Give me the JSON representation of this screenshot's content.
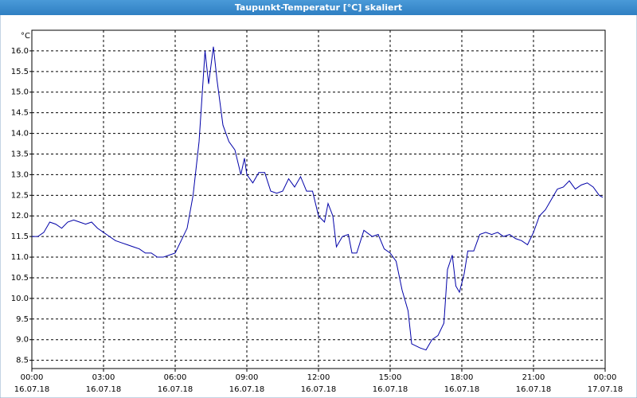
{
  "chart_data": {
    "type": "line",
    "title": "Taupunkt-Temperatur [°C] skaliert",
    "y_unit": "°C",
    "color": "#0000a8",
    "grid": true,
    "xlim": [
      0,
      24
    ],
    "xticks": [
      {
        "value": 0,
        "label": "00:00",
        "date": "16.07.18"
      },
      {
        "value": 3,
        "label": "03:00",
        "date": "16.07.18"
      },
      {
        "value": 6,
        "label": "06:00",
        "date": "16.07.18"
      },
      {
        "value": 9,
        "label": "09:00",
        "date": "16.07.18"
      },
      {
        "value": 12,
        "label": "12:00",
        "date": "16.07.18"
      },
      {
        "value": 15,
        "label": "15:00",
        "date": "16.07.18"
      },
      {
        "value": 18,
        "label": "18:00",
        "date": "16.07.18"
      },
      {
        "value": 21,
        "label": "21:00",
        "date": "16.07.18"
      },
      {
        "value": 24,
        "label": "00:00",
        "date": "17.07.18"
      }
    ],
    "ylim": [
      8.3,
      16.5
    ],
    "yticks": [
      8.5,
      {
        "value": 9,
        "label": "9.0"
      },
      9.5,
      {
        "value": 10,
        "label": "10.0"
      },
      10.5,
      {
        "value": 11,
        "label": "11.0"
      },
      11.5,
      {
        "value": 12,
        "label": "12.0"
      },
      12.5,
      {
        "value": 13,
        "label": "13.0"
      },
      13.5,
      {
        "value": 14,
        "label": "14.0"
      },
      14.5,
      {
        "value": 15,
        "label": "15.0"
      },
      15.5,
      {
        "value": 16,
        "label": "16.0"
      }
    ],
    "x": [
      0,
      0.25,
      0.5,
      0.75,
      1,
      1.25,
      1.5,
      1.75,
      2,
      2.25,
      2.5,
      2.75,
      3,
      3.25,
      3.5,
      3.75,
      4,
      4.25,
      4.5,
      4.75,
      5,
      5.25,
      5.5,
      5.75,
      6,
      6.25,
      6.5,
      6.75,
      7,
      7.25,
      7.4,
      7.6,
      7.75,
      8,
      8.25,
      8.5,
      8.75,
      8.9,
      9,
      9.25,
      9.5,
      9.75,
      10,
      10.25,
      10.5,
      10.75,
      11,
      11.25,
      11.5,
      11.75,
      12,
      12.25,
      12.4,
      12.6,
      12.75,
      13,
      13.25,
      13.4,
      13.6,
      13.9,
      14.25,
      14.5,
      14.75,
      15,
      15.25,
      15.5,
      15.75,
      15.9,
      16.25,
      16.5,
      16.75,
      17,
      17.25,
      17.4,
      17.6,
      17.75,
      17.9,
      18.1,
      18.25,
      18.5,
      18.75,
      19,
      19.25,
      19.5,
      19.75,
      20,
      20.25,
      20.5,
      20.75,
      21,
      21.25,
      21.5,
      21.75,
      22,
      22.25,
      22.5,
      22.75,
      23,
      23.25,
      23.5,
      23.75,
      23.9
    ],
    "values": [
      11.5,
      11.5,
      11.6,
      11.85,
      11.8,
      11.7,
      11.85,
      11.9,
      11.85,
      11.8,
      11.85,
      11.7,
      11.6,
      11.5,
      11.4,
      11.35,
      11.3,
      11.25,
      11.2,
      11.1,
      11.1,
      11.0,
      11.0,
      11.05,
      11.1,
      11.4,
      11.7,
      12.5,
      13.8,
      16.0,
      15.2,
      16.1,
      15.3,
      14.2,
      13.8,
      13.6,
      13.0,
      13.4,
      13.0,
      12.8,
      13.05,
      13.05,
      12.6,
      12.55,
      12.6,
      12.9,
      12.7,
      12.95,
      12.6,
      12.6,
      12.0,
      11.85,
      12.3,
      12.0,
      11.25,
      11.5,
      11.55,
      11.1,
      11.1,
      11.65,
      11.5,
      11.55,
      11.2,
      11.1,
      10.9,
      10.2,
      9.7,
      8.9,
      8.8,
      8.75,
      9.0,
      9.1,
      9.4,
      10.7,
      11.05,
      10.3,
      10.15,
      10.6,
      11.15,
      11.15,
      11.55,
      11.6,
      11.55,
      11.6,
      11.5,
      11.55,
      11.45,
      11.4,
      11.3,
      11.6,
      12.0,
      12.15,
      12.4,
      12.65,
      12.7,
      12.85,
      12.65,
      12.75,
      12.8,
      12.7,
      12.5,
      12.45
    ]
  }
}
